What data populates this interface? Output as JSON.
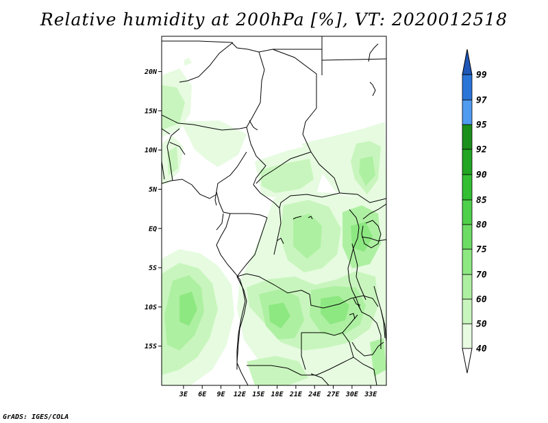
{
  "title": "Relative humidity at 200hPa [%], VT: 2020012518",
  "credit": "GrADS: IGES/COLA",
  "map": {
    "lon_range": [
      -0.5,
      35.5
    ],
    "lat_range": [
      -20,
      24.5
    ],
    "lat_ticks": [
      {
        "value": 20,
        "label": "20N"
      },
      {
        "value": 15,
        "label": "15N"
      },
      {
        "value": 10,
        "label": "10N"
      },
      {
        "value": 5,
        "label": "5N"
      },
      {
        "value": 0,
        "label": "EQ"
      },
      {
        "value": -5,
        "label": "5S"
      },
      {
        "value": -10,
        "label": "10S"
      },
      {
        "value": -15,
        "label": "15S"
      }
    ],
    "lon_ticks": [
      {
        "value": 3,
        "label": "3E"
      },
      {
        "value": 6,
        "label": "6E"
      },
      {
        "value": 9,
        "label": "9E"
      },
      {
        "value": 12,
        "label": "12E"
      },
      {
        "value": 15,
        "label": "15E"
      },
      {
        "value": 18,
        "label": "18E"
      },
      {
        "value": 21,
        "label": "21E"
      },
      {
        "value": 24,
        "label": "24E"
      },
      {
        "value": 27,
        "label": "27E"
      },
      {
        "value": 30,
        "label": "30E"
      },
      {
        "value": 33,
        "label": "33E"
      }
    ]
  },
  "colorbar": {
    "levels": [
      "40",
      "50",
      "60",
      "70",
      "75",
      "80",
      "85",
      "90",
      "92",
      "95",
      "97",
      "99"
    ],
    "colors": [
      "#ffffff",
      "#e6fbe0",
      "#c8f5bd",
      "#aef0a2",
      "#8ee882",
      "#6cdc64",
      "#4fd04a",
      "#33be33",
      "#22a522",
      "#1b8f1b",
      "#4f9bf0",
      "#2a74d8",
      "#1f57b8"
    ]
  },
  "humidity_fields": [
    {
      "level": "50",
      "color": "#e6fbe0"
    },
    {
      "level": "60",
      "color": "#c8f5bd"
    },
    {
      "level": "70",
      "color": "#aef0a2"
    },
    {
      "level": "75",
      "color": "#8ee882"
    }
  ]
}
